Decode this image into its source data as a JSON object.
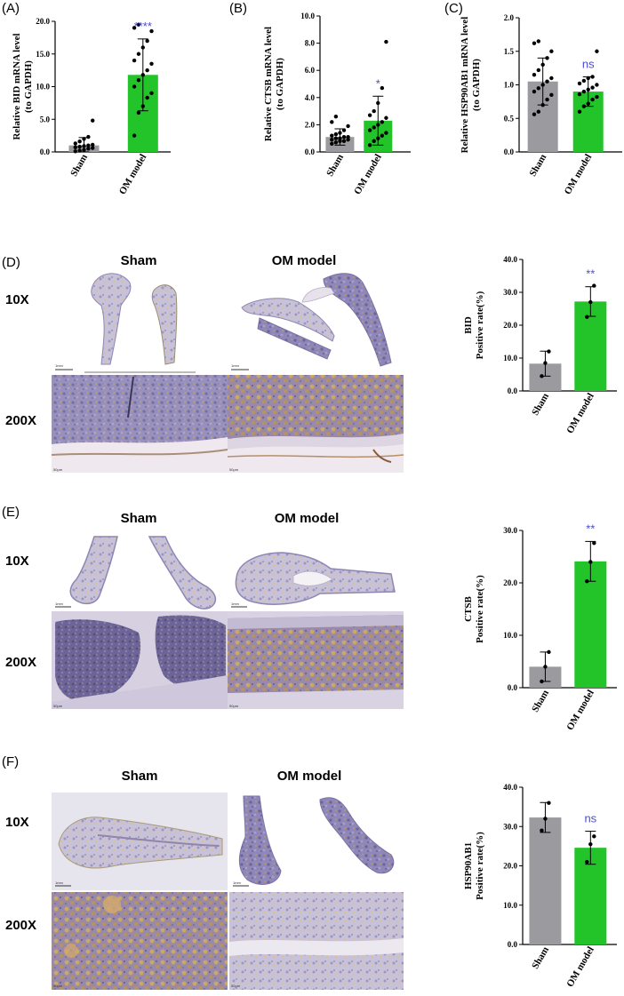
{
  "colors": {
    "sham": "#9a9a9f",
    "om": "#22c42a",
    "significance": "#4b4bd6",
    "axis": "#000000",
    "tissue_bg": "#f3f1f4",
    "tissue_purple": "#8c85b6",
    "tissue_brown": "#c7a46a"
  },
  "panels_top": {
    "A": {
      "letter": "(A)"
    },
    "B": {
      "letter": "(B)"
    },
    "C": {
      "letter": "(C)"
    }
  },
  "histology": {
    "D": {
      "letter": "(D)",
      "sham_header": "Sham",
      "om_header": "OM model",
      "mag_low": "10X",
      "mag_high": "200X",
      "scale_low": "1mm",
      "scale_high": "50μm"
    },
    "E": {
      "letter": "(E)",
      "sham_header": "Sham",
      "om_header": "OM model",
      "mag_low": "10X",
      "mag_high": "200X",
      "scale_low": "1mm",
      "scale_high": "50μm"
    },
    "F": {
      "letter": "(F)",
      "sham_header": "Sham",
      "om_header": "OM model",
      "mag_low": "10X",
      "mag_high": "200X",
      "scale_low": "1mm",
      "scale_high": "50μm"
    }
  },
  "chart_data": [
    {
      "id": "A",
      "type": "bar",
      "categories": [
        "Sham",
        "OM model"
      ],
      "values": [
        1.0,
        11.8
      ],
      "errors": [
        1.2,
        5.5
      ],
      "points": [
        [
          0.1,
          0.2,
          0.3,
          0.5,
          0.6,
          0.7,
          0.8,
          0.9,
          1.0,
          1.1,
          1.3,
          1.6,
          2.0,
          2.3,
          4.8
        ],
        [
          2.5,
          6.0,
          7.0,
          8.3,
          9.0,
          10.0,
          11.0,
          11.8,
          12.5,
          13.5,
          14.0,
          15.0,
          16.0,
          17.0,
          18.5,
          19.0,
          19.5
        ]
      ],
      "ylabel_lines": [
        "Relative BID mRNA level",
        "(to GAPDH)"
      ],
      "ylim": [
        0,
        20
      ],
      "yticks": [
        "0.0",
        "5.0",
        "10.0",
        "15.0",
        "20.0"
      ],
      "significance": "****"
    },
    {
      "id": "B",
      "type": "bar",
      "categories": [
        "Sham",
        "OM model"
      ],
      "values": [
        1.1,
        2.3
      ],
      "errors": [
        0.6,
        1.8
      ],
      "points": [
        [
          0.6,
          0.7,
          0.8,
          0.8,
          0.9,
          0.9,
          1.0,
          1.0,
          1.1,
          1.1,
          1.2,
          1.3,
          1.4,
          1.6,
          1.9,
          2.2,
          2.6
        ],
        [
          0.5,
          0.8,
          1.0,
          1.2,
          1.4,
          1.6,
          1.8,
          2.0,
          2.2,
          2.5,
          2.7,
          3.0,
          3.6,
          4.7,
          8.1
        ]
      ],
      "ylabel_lines": [
        "Relative CTSB mRNA level",
        "(to GAPDH)"
      ],
      "ylim": [
        0,
        10
      ],
      "yticks": [
        "0.0",
        "2.0",
        "4.0",
        "6.0",
        "8.0",
        "10.0"
      ],
      "significance": "*"
    },
    {
      "id": "C",
      "type": "bar",
      "categories": [
        "Sham",
        "OM model"
      ],
      "values": [
        1.05,
        0.9
      ],
      "errors": [
        0.35,
        0.22
      ],
      "points": [
        [
          0.56,
          0.6,
          0.7,
          0.78,
          0.85,
          0.9,
          0.95,
          1.0,
          1.05,
          1.1,
          1.15,
          1.22,
          1.3,
          1.4,
          1.5,
          1.62,
          1.65
        ],
        [
          0.6,
          0.68,
          0.72,
          0.78,
          0.82,
          0.86,
          0.9,
          0.93,
          0.96,
          1.0,
          1.02,
          1.06,
          1.1,
          1.12,
          1.5
        ]
      ],
      "ylabel_lines": [
        "Relative HSP90AB1 mRNA level",
        "(to GAPDH)"
      ],
      "ylim": [
        0,
        2
      ],
      "yticks": [
        "0.0",
        "0.5",
        "1.0",
        "1.5",
        "2.0"
      ],
      "significance": "ns"
    },
    {
      "id": "D",
      "type": "bar",
      "categories": [
        "Sham",
        "OM model"
      ],
      "values": [
        8.3,
        27.2
      ],
      "errors": [
        3.8,
        4.5
      ],
      "points": [
        [
          4.5,
          8.5,
          12.0
        ],
        [
          22.5,
          27.0,
          32.0
        ]
      ],
      "ylabel_lines": [
        "BID",
        "Positive rate(%)"
      ],
      "ylim": [
        0,
        40
      ],
      "yticks": [
        "0.0",
        "10.0",
        "20.0",
        "30.0",
        "40.0"
      ],
      "significance": "**"
    },
    {
      "id": "E",
      "type": "bar",
      "categories": [
        "Sham",
        "OM model"
      ],
      "values": [
        4.0,
        24.1
      ],
      "errors": [
        2.8,
        3.8
      ],
      "points": [
        [
          1.2,
          4.0,
          6.8
        ],
        [
          20.3,
          24.0,
          27.6
        ]
      ],
      "ylabel_lines": [
        "CTSB",
        "Positive rate(%)"
      ],
      "ylim": [
        0,
        30
      ],
      "yticks": [
        "0.0",
        "10.0",
        "20.0",
        "30.0"
      ],
      "significance": "**"
    },
    {
      "id": "F",
      "type": "bar",
      "categories": [
        "Sham",
        "OM model"
      ],
      "values": [
        32.3,
        24.6
      ],
      "errors": [
        3.8,
        4.2
      ],
      "points": [
        [
          29.0,
          32.0,
          36.0
        ],
        [
          21.0,
          25.5,
          27.5
        ]
      ],
      "ylabel_lines": [
        "HSP90AB1",
        "Positive rate(%)"
      ],
      "ylim": [
        0,
        40
      ],
      "yticks": [
        "0.0",
        "10.0",
        "20.0",
        "30.0",
        "40.0"
      ],
      "significance": "ns"
    }
  ]
}
